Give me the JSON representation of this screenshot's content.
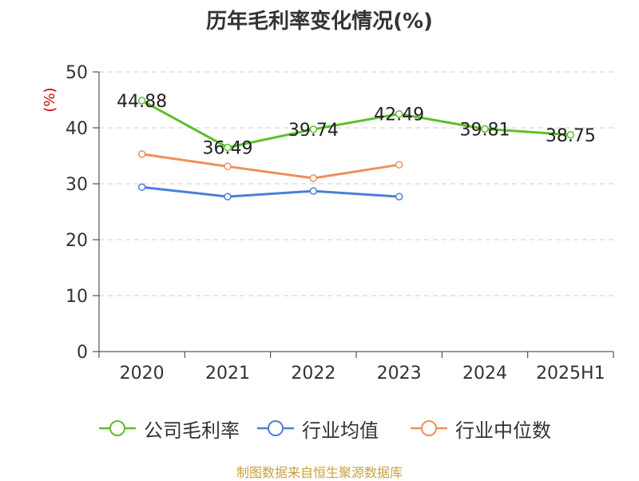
{
  "title": "历年毛利率变化情况(%)",
  "footer": "制图数据来自恒生聚源数据库",
  "chart_data": {
    "type": "line",
    "title": "历年毛利率变化情况(%)",
    "ylabel": "(%)",
    "xlabel": "",
    "categories": [
      "2020",
      "2021",
      "2022",
      "2023",
      "2024",
      "2025H1"
    ],
    "ylim": [
      0,
      50
    ],
    "yticks": [
      0,
      10,
      20,
      30,
      40,
      50
    ],
    "grid": "horizontal-dashed",
    "legend_position": "bottom",
    "series": [
      {
        "name": "公司毛利率",
        "color": "#5bbf2a",
        "values": [
          44.88,
          36.49,
          39.74,
          42.49,
          39.81,
          38.75
        ],
        "labels": [
          "44.88",
          "36.49",
          "39.74",
          "42.49",
          "39.81",
          "38.75"
        ]
      },
      {
        "name": "行业均值",
        "color": "#4b7fd6",
        "values": [
          29.4,
          27.7,
          28.7,
          27.7,
          null,
          null
        ],
        "labels": []
      },
      {
        "name": "行业中位数",
        "color": "#f28e5a",
        "values": [
          35.3,
          33.1,
          31.0,
          33.4,
          null,
          null
        ],
        "labels": []
      }
    ]
  }
}
